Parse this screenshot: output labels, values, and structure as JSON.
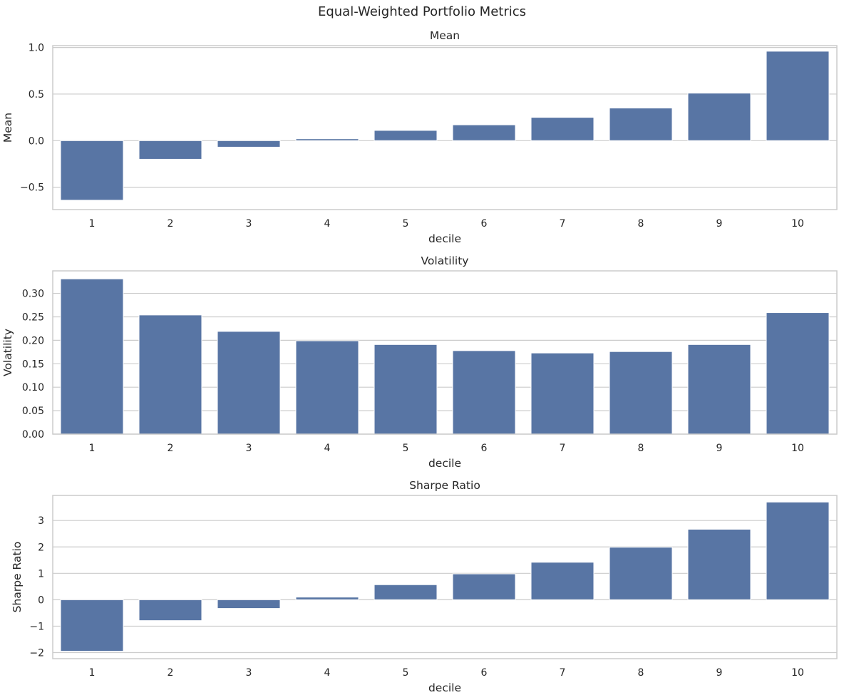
{
  "figure": {
    "title": "Equal-Weighted Portfolio Metrics"
  },
  "style": {
    "bar_color": "#5875a4",
    "grid_color": "#cccccc",
    "spine_color": "#cccccc",
    "background": "#ffffff"
  },
  "chart_data": [
    {
      "type": "bar",
      "title": "Mean",
      "xlabel": "decile",
      "ylabel": "Mean",
      "categories": [
        "1",
        "2",
        "3",
        "4",
        "5",
        "6",
        "7",
        "8",
        "9",
        "10"
      ],
      "values": [
        -0.64,
        -0.2,
        -0.07,
        0.02,
        0.11,
        0.17,
        0.25,
        0.35,
        0.51,
        0.96
      ],
      "ylim": [
        -0.74,
        1.02
      ],
      "yticks": [
        -0.5,
        0.0,
        0.5,
        1.0
      ],
      "ytick_labels": [
        "−0.5",
        "0.0",
        "0.5",
        "1.0"
      ],
      "grid": true,
      "legend": "none"
    },
    {
      "type": "bar",
      "title": "Volatility",
      "xlabel": "decile",
      "ylabel": "Volatility",
      "categories": [
        "1",
        "2",
        "3",
        "4",
        "5",
        "6",
        "7",
        "8",
        "9",
        "10"
      ],
      "values": [
        0.331,
        0.254,
        0.219,
        0.199,
        0.191,
        0.178,
        0.173,
        0.176,
        0.191,
        0.259
      ],
      "ylim": [
        0.0,
        0.348
      ],
      "yticks": [
        0.0,
        0.05,
        0.1,
        0.15,
        0.2,
        0.25,
        0.3
      ],
      "ytick_labels": [
        "0.00",
        "0.05",
        "0.10",
        "0.15",
        "0.20",
        "0.25",
        "0.30"
      ],
      "grid": true,
      "legend": "none"
    },
    {
      "type": "bar",
      "title": "Sharpe Ratio",
      "xlabel": "decile",
      "ylabel": "Sharpe Ratio",
      "categories": [
        "1",
        "2",
        "3",
        "4",
        "5",
        "6",
        "7",
        "8",
        "9",
        "10"
      ],
      "values": [
        -1.95,
        -0.79,
        -0.33,
        0.1,
        0.57,
        0.98,
        1.42,
        1.99,
        2.67,
        3.7
      ],
      "ylim": [
        -2.23,
        3.95
      ],
      "yticks": [
        -2,
        -1,
        0,
        1,
        2,
        3
      ],
      "ytick_labels": [
        "−2",
        "−1",
        "0",
        "1",
        "2",
        "3"
      ],
      "grid": true,
      "legend": "none"
    }
  ]
}
